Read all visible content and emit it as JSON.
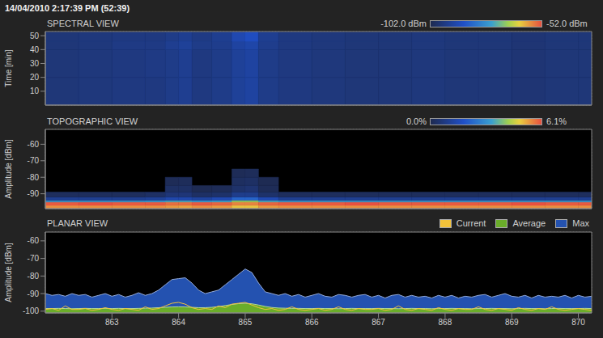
{
  "header": "14/04/2010 2:17:39 PM (52:39)",
  "chart_data": [
    {
      "type": "heatmap",
      "title": "SPECTRAL VIEW",
      "ylabel": "Time [min]",
      "xlim": [
        862,
        870.2
      ],
      "xticks": [
        863,
        864,
        865,
        866,
        867,
        868,
        869,
        870
      ],
      "ylim": [
        0,
        53
      ],
      "yticks": [
        10,
        20,
        30,
        40,
        50
      ],
      "tick_labels": "y",
      "grid": true,
      "x_edges": [
        862,
        862.5,
        863,
        863.5,
        863.8,
        864,
        864.2,
        864.5,
        864.8,
        865,
        865.2,
        865.5,
        866,
        866.5,
        867,
        867.5,
        868,
        868.5,
        869,
        869.5,
        870,
        870.2
      ],
      "y_edges": [
        0,
        20,
        40,
        46,
        52.65
      ],
      "cells": [
        [
          -97,
          -96.5,
          -96,
          -96,
          -95,
          -94,
          -96,
          -95,
          -93,
          -92,
          -95,
          -96,
          -96.5,
          -97,
          -97,
          -96.5,
          -97,
          -97,
          -97.5,
          -97,
          -97
        ],
        [
          -97,
          -96.5,
          -96,
          -95.5,
          -95,
          -94,
          -96,
          -95,
          -93,
          -92,
          -95,
          -96,
          -96.5,
          -97,
          -97,
          -96.5,
          -97,
          -97,
          -97.5,
          -97,
          -97
        ],
        [
          -97,
          -96.5,
          -95.5,
          -95.5,
          -94,
          -93,
          -95,
          -94.5,
          -92,
          -91,
          -94.5,
          -96,
          -96.5,
          -97,
          -97,
          -96.5,
          -97,
          -97,
          -97.5,
          -97,
          -97
        ],
        [
          -97,
          -96.5,
          -96,
          -96,
          -95,
          -94,
          -95.5,
          -94,
          -90,
          -88,
          -94,
          -96,
          -96.5,
          -97,
          -97,
          -96.5,
          -97,
          -97,
          -97.5,
          -97,
          -97
        ]
      ],
      "colorbar": {
        "range": [
          -102,
          -52
        ],
        "ticks": [
          {
            "value": -102,
            "label": "-102.0 dBm"
          },
          {
            "value": -52,
            "label": "-52.0 dBm"
          }
        ]
      }
    },
    {
      "type": "heatmap",
      "title": "TOPOGRAPHIC VIEW",
      "ylabel": "Amplitude [dBm]",
      "xlim": [
        862,
        870.2
      ],
      "xticks": [
        863,
        864,
        865,
        866,
        867,
        868,
        869,
        870
      ],
      "ylim": [
        -99,
        -51
      ],
      "yticks": [
        -90,
        -80,
        -70,
        -60
      ],
      "tick_labels": "y",
      "grid": true,
      "x_edges": [
        862,
        862.5,
        863,
        863.5,
        863.8,
        864,
        864.2,
        864.5,
        864.8,
        865,
        865.2,
        865.5,
        866,
        866.5,
        867,
        867.5,
        868,
        868.5,
        869,
        869.5,
        870,
        870.2
      ],
      "y_edges": [
        -99,
        -97,
        -95,
        -94,
        -92,
        -89,
        -85,
        -80,
        -75
      ],
      "cells": [
        [
          5.5,
          5.5,
          5.5,
          5.5,
          5.4,
          5.3,
          5.5,
          5.4,
          5.0,
          5.0,
          5.4,
          5.5,
          5.5,
          5.5,
          5.5,
          5.5,
          5.5,
          5.5,
          5.5,
          5.5,
          5.5
        ],
        [
          6.0,
          6.1,
          6.0,
          6.0,
          5.8,
          5.8,
          6.0,
          5.9,
          5.6,
          5.6,
          5.9,
          6.0,
          6.0,
          6.1,
          6.0,
          6.0,
          6.0,
          6.0,
          6.1,
          6.0,
          6.0
        ],
        [
          3.2,
          3.2,
          3.2,
          3.3,
          3.5,
          3.5,
          3.3,
          3.4,
          4.2,
          4.2,
          3.5,
          3.2,
          3.2,
          3.2,
          3.2,
          3.2,
          3.2,
          3.2,
          3.2,
          3.2,
          3.2
        ],
        [
          1.0,
          1.0,
          1.0,
          1.1,
          1.4,
          1.4,
          1.2,
          1.5,
          2.2,
          2.2,
          1.5,
          1.0,
          1.0,
          1.0,
          1.0,
          1.0,
          1.0,
          1.0,
          1.0,
          1.0,
          1.0
        ],
        [
          0.2,
          0.2,
          0.2,
          0.3,
          0.6,
          0.6,
          0.3,
          0.4,
          0.9,
          0.9,
          0.4,
          0.2,
          0.2,
          0.2,
          0.2,
          0.2,
          0.2,
          0.2,
          0.2,
          0.2,
          0.2
        ],
        [
          0,
          0,
          0,
          0,
          0.3,
          0.3,
          0.05,
          0.1,
          0.4,
          0.5,
          0.1,
          0,
          0,
          0,
          0,
          0,
          0,
          0,
          0,
          0,
          0
        ],
        [
          0,
          0,
          0,
          0,
          0.1,
          0.15,
          0,
          0,
          0.25,
          0.3,
          0.05,
          0,
          0,
          0,
          0,
          0,
          0,
          0,
          0,
          0,
          0
        ],
        [
          0,
          0,
          0,
          0,
          0,
          0,
          0,
          0,
          0.1,
          0.15,
          0,
          0,
          0,
          0,
          0,
          0,
          0,
          0,
          0,
          0,
          0
        ]
      ],
      "colorbar": {
        "range": [
          0,
          6.1
        ],
        "ticks": [
          {
            "value": 0,
            "label": "0.0%"
          },
          {
            "value": 6.1,
            "label": "6.1%"
          }
        ]
      }
    },
    {
      "type": "area",
      "title": "PLANAR VIEW",
      "ylabel": "Amplitude [dBm]",
      "xlim": [
        862,
        870.2
      ],
      "xticks": [
        863,
        864,
        865,
        866,
        867,
        868,
        869,
        870
      ],
      "ylim": [
        -101,
        -55
      ],
      "yticks": [
        -100,
        -90,
        -80,
        -70,
        -60
      ],
      "grid": true,
      "legend": "top-right",
      "x": [
        862,
        862.1,
        862.2,
        862.3,
        862.4,
        862.5,
        862.6,
        862.7,
        862.8,
        862.9,
        863,
        863.1,
        863.2,
        863.3,
        863.4,
        863.5,
        863.6,
        863.7,
        863.8,
        863.9,
        864,
        864.1,
        864.2,
        864.3,
        864.4,
        864.5,
        864.6,
        864.7,
        864.8,
        864.9,
        865,
        865.1,
        865.2,
        865.3,
        865.4,
        865.5,
        865.6,
        865.7,
        865.8,
        865.9,
        866,
        866.1,
        866.2,
        866.3,
        866.4,
        866.5,
        866.6,
        866.7,
        866.8,
        866.9,
        867,
        867.1,
        867.2,
        867.3,
        867.4,
        867.5,
        867.6,
        867.7,
        867.8,
        867.9,
        868,
        868.1,
        868.2,
        868.3,
        868.4,
        868.5,
        868.6,
        868.7,
        868.8,
        868.9,
        869,
        869.1,
        869.2,
        869.3,
        869.4,
        869.5,
        869.6,
        869.7,
        869.8,
        869.9,
        870,
        870.1,
        870.2
      ],
      "series": [
        {
          "name": "Current",
          "color": "#f2c23a",
          "type": "line",
          "values": [
            -99,
            -98.5,
            -99.5,
            -97,
            -99,
            -99,
            -98.5,
            -99.5,
            -99,
            -98,
            -99,
            -99.5,
            -98.5,
            -99,
            -99.5,
            -97.5,
            -99,
            -98.5,
            -97,
            -95.5,
            -95,
            -96,
            -98,
            -99,
            -98.5,
            -99,
            -97,
            -98,
            -96,
            -95.5,
            -95,
            -96.5,
            -98,
            -99,
            -98.5,
            -99.5,
            -99,
            -97.5,
            -99,
            -99.5,
            -99,
            -98.5,
            -99.5,
            -99,
            -97.5,
            -99,
            -99.5,
            -98.5,
            -99,
            -99,
            -98.5,
            -99.5,
            -99,
            -97,
            -99,
            -99.5,
            -98.5,
            -99,
            -99.5,
            -98,
            -99,
            -99.5,
            -98.5,
            -99,
            -99,
            -97.5,
            -99,
            -99.5,
            -98.5,
            -99,
            -99.5,
            -98,
            -99,
            -99.5,
            -98.5,
            -99,
            -97.5,
            -99,
            -99.5,
            -99,
            -98.5,
            -99,
            -99.5
          ]
        },
        {
          "name": "Average",
          "color": "#6aad2a",
          "type": "area",
          "values": [
            -98.5,
            -98.5,
            -98.4,
            -98.5,
            -98.6,
            -98.5,
            -98.4,
            -98.5,
            -98.5,
            -98.4,
            -98.5,
            -98.4,
            -98.5,
            -98.5,
            -98.4,
            -98.3,
            -98.2,
            -98,
            -97.8,
            -97.6,
            -97.5,
            -97.6,
            -97.8,
            -98,
            -98,
            -97.8,
            -97.4,
            -96.8,
            -96.2,
            -95.7,
            -95.5,
            -95.8,
            -96.5,
            -97.3,
            -97.9,
            -98.2,
            -98.3,
            -98.4,
            -98.4,
            -98.5,
            -98.5,
            -98.4,
            -98.5,
            -98.5,
            -98.6,
            -98.5,
            -98.4,
            -98.5,
            -98.5,
            -98.5,
            -98.4,
            -98.5,
            -98.5,
            -98.6,
            -98.5,
            -98.4,
            -98.5,
            -98.5,
            -98.6,
            -98.5,
            -98.5,
            -98.4,
            -98.5,
            -98.5,
            -98.6,
            -98.5,
            -98.5,
            -98.4,
            -98.5,
            -98.5,
            -98.6,
            -98.5,
            -98.4,
            -98.5,
            -98.5,
            -98.6,
            -98.5,
            -98.4,
            -98.5,
            -98.5,
            -98.5,
            -98.4,
            -98.5
          ]
        },
        {
          "name": "Max",
          "color": "#2452b0",
          "type": "area",
          "values": [
            -90,
            -91,
            -90.5,
            -91.5,
            -90,
            -91,
            -90.5,
            -92,
            -91,
            -90,
            -91.5,
            -90.5,
            -92,
            -91,
            -89.5,
            -91,
            -90,
            -88,
            -85,
            -82,
            -81.5,
            -81,
            -84,
            -88,
            -90,
            -89,
            -88,
            -85,
            -82,
            -79,
            -76,
            -78,
            -84,
            -89,
            -90,
            -91,
            -90,
            -91.5,
            -90.5,
            -92,
            -91,
            -90,
            -91.5,
            -92,
            -90.5,
            -91,
            -92,
            -91,
            -90.5,
            -92,
            -91,
            -92.5,
            -91,
            -90.5,
            -92,
            -91,
            -92,
            -91.5,
            -92.5,
            -91,
            -92,
            -91,
            -92.5,
            -91.5,
            -92,
            -91,
            -90.5,
            -92,
            -91,
            -90,
            -91.5,
            -92,
            -91,
            -92.5,
            -91,
            -92,
            -91.5,
            -92,
            -91,
            -92.5,
            -91,
            -92,
            -91.5
          ]
        }
      ]
    }
  ]
}
